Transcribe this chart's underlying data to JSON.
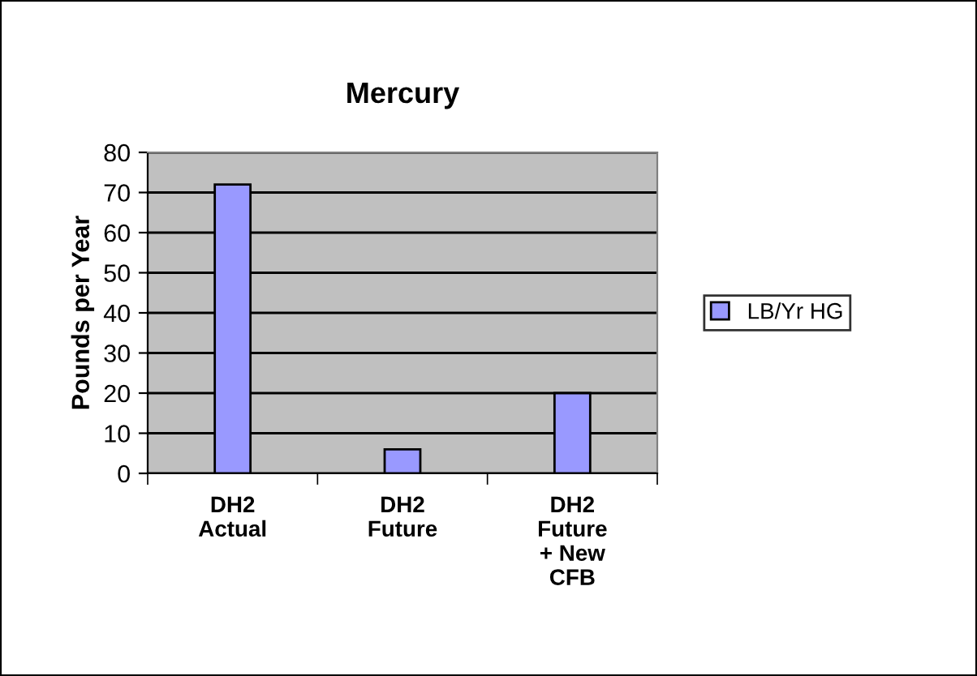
{
  "chart_data": {
    "type": "bar",
    "title": "Mercury",
    "ylabel": "Pounds per Year",
    "categories": [
      "DH2\nActual",
      "DH2\nFuture",
      "DH2\nFuture\n+ New\nCFB"
    ],
    "series": [
      {
        "name": "LB/Yr HG",
        "color": "#9999ff",
        "values": [
          72,
          6,
          20
        ]
      }
    ],
    "ylim": [
      0,
      80
    ],
    "yticks": [
      0,
      10,
      20,
      30,
      40,
      50,
      60,
      70,
      80
    ],
    "grid": "y",
    "legend": "right"
  }
}
